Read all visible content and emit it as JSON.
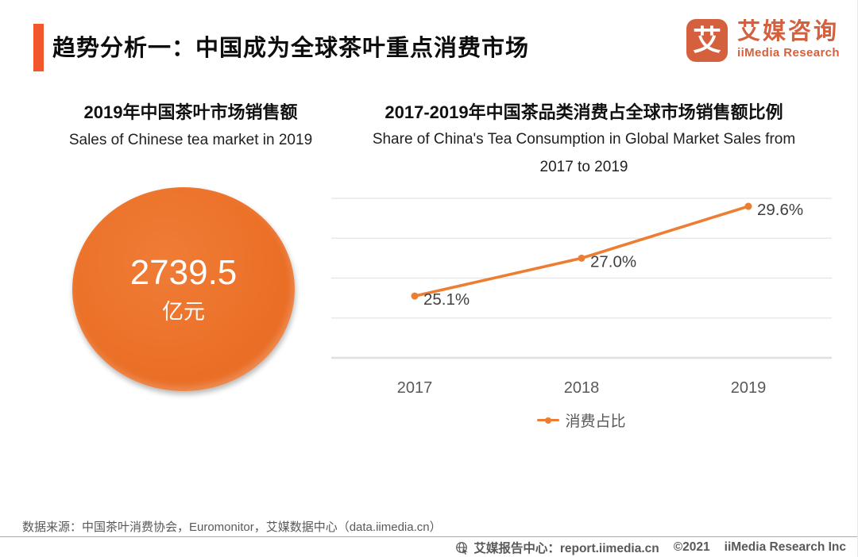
{
  "header": {
    "title": "趋势分析一：中国成为全球茶叶重点消费市场",
    "logo": {
      "glyph": "艾",
      "brand_cn": "艾媒咨询",
      "brand_en": "iiMedia Research"
    }
  },
  "left_panel": {
    "title_cn": "2019年中国茶叶市场销售额",
    "title_en": "Sales of Chinese tea market in 2019",
    "value": "2739.5",
    "unit": "亿元"
  },
  "right_panel": {
    "title_cn": "2017-2019年中国茶品类消费占全球市场销售额比例",
    "title_en_line1": "Share of China's Tea Consumption in Global Market Sales from",
    "title_en_line2": "2017 to 2019",
    "legend_label": "消费占比"
  },
  "chart_data": {
    "type": "line",
    "categories": [
      "2017",
      "2018",
      "2019"
    ],
    "series": [
      {
        "name": "消费占比",
        "values": [
          25.1,
          27.0,
          29.6
        ]
      }
    ],
    "point_labels": [
      "25.1%",
      "27.0%",
      "29.6%"
    ],
    "ylim": [
      22,
      30
    ],
    "grid_step": 2,
    "grid": true,
    "legend_position": "bottom",
    "line_color": "#ED7D31",
    "grid_color": "#e4e4e4",
    "axis_color": "#e0e0e0",
    "label_color": "#404040",
    "tick_color": "#595959"
  },
  "footer": {
    "source": "数据来源：中国茶叶消费协会，Euromonitor，艾媒数据中心（data.iimedia.cn）",
    "report_center": "艾媒报告中心：report.iimedia.cn",
    "copyright": "©2021",
    "company": "iiMedia Research Inc"
  },
  "colors": {
    "accent": "#F2572B",
    "brand_orange": "#D4603E",
    "chart_orange": "#ED7D31"
  }
}
